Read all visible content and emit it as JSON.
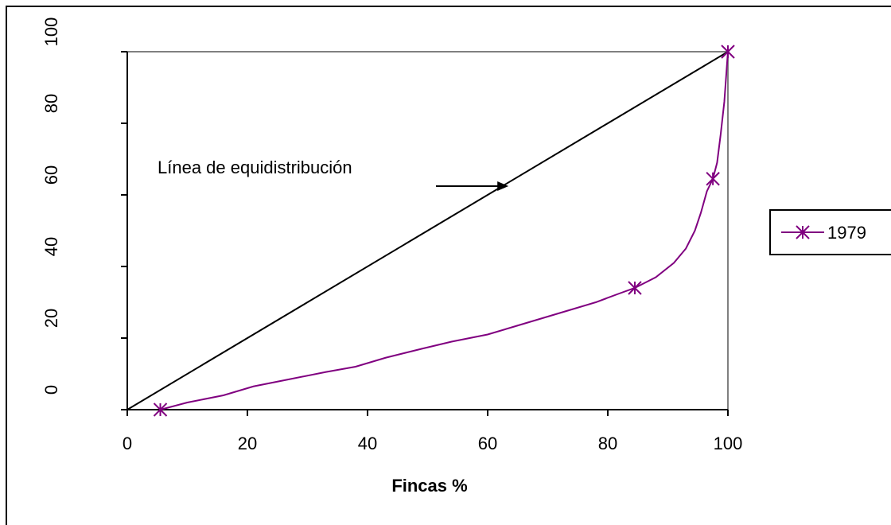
{
  "chart_data": {
    "type": "line",
    "title": "",
    "xlabel": "Fincas %",
    "ylabel": "",
    "xlim": [
      0,
      100
    ],
    "ylim": [
      0,
      100
    ],
    "x_ticks": [
      "0",
      "20",
      "40",
      "60",
      "80",
      "100"
    ],
    "y_ticks": [
      "0",
      "20",
      "40",
      "60",
      "80",
      "100"
    ],
    "grid": false,
    "legend_placement": "right",
    "series": [
      {
        "name": "1979",
        "color": "#800080",
        "marker": "asterisk",
        "x": [
          5.5,
          10,
          16,
          21,
          27,
          33,
          38,
          43,
          49,
          54,
          60,
          65,
          70,
          74,
          78,
          82,
          84.5,
          88,
          91,
          93,
          94.5,
          95.5,
          96.5,
          97.5,
          98.2,
          98.8,
          99.4,
          100
        ],
        "y": [
          0,
          2,
          4,
          6.5,
          8.5,
          10.5,
          12,
          14.5,
          17,
          19,
          21,
          23.5,
          26,
          28,
          30,
          32.5,
          34,
          37,
          41,
          45,
          50,
          55,
          61,
          64.5,
          69,
          77,
          86,
          100
        ],
        "marker_indices": [
          0,
          16,
          23,
          27
        ]
      },
      {
        "name": "",
        "color": "#000000",
        "marker": "none",
        "x": [
          0,
          100
        ],
        "y": [
          0,
          100
        ]
      }
    ],
    "annotations": [
      {
        "text": "Línea de equidistribución",
        "arrow_to": [
          64,
          64
        ]
      }
    ]
  }
}
